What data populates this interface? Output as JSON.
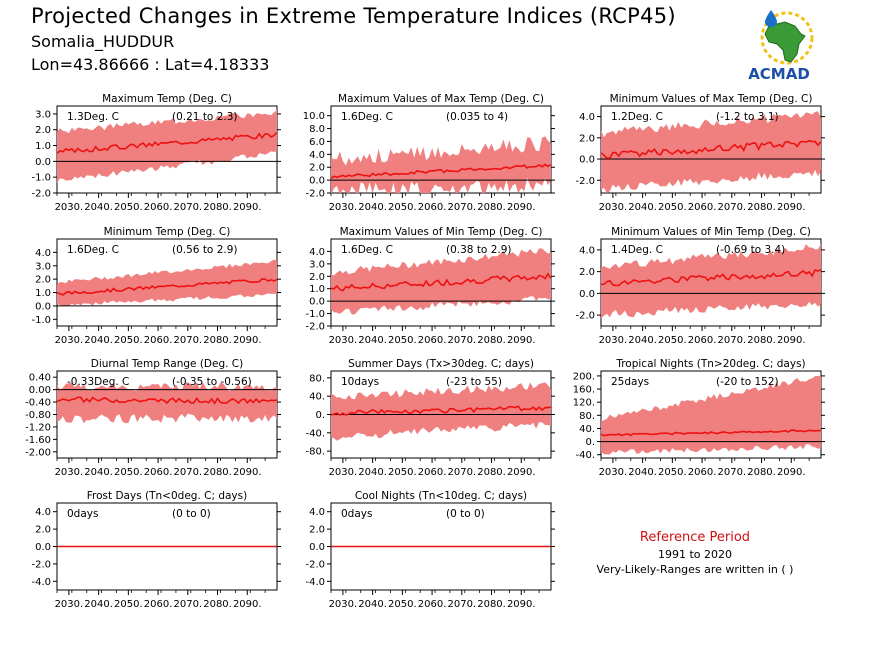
{
  "header": {
    "title": "Projected Changes in Extreme Temperature Indices (RCP45)",
    "subtitle": "Somalia_HUDDUR",
    "coords": "Lon=43.86666 : Lat=4.18333"
  },
  "logo": {
    "text": "ACMAD",
    "icon": "africa-map-logo"
  },
  "reference": {
    "title": "Reference Period",
    "years": "1991 to 2020",
    "note": "Very-Likely-Ranges are written in ( )"
  },
  "colors": {
    "band": "#f08080",
    "line": "#ee1111",
    "zero": "#000000",
    "ref_title": "#d01010"
  },
  "x_ticks": [
    "2030.",
    "2040.",
    "2050.",
    "2060.",
    "2070.",
    "2080.",
    "2090."
  ],
  "chart_data": [
    {
      "type": "line",
      "title": "Maximum Temp (Deg. C)",
      "value_label": "1.3Deg. C",
      "range_label": "(0.21 to 2.3)",
      "x_start": 2026,
      "x_end": 2100,
      "ylim": [
        -2.0,
        3.5
      ],
      "yticks": [
        "-2.0",
        "-1.0",
        "0.0",
        "1.0",
        "2.0",
        "3.0"
      ],
      "series": {
        "start": 0.6,
        "end": 1.7,
        "wiggle": 0.15,
        "band_lo_start": -1.0,
        "band_lo_end": 0.7,
        "band_hi_start": 1.7,
        "band_hi_end": 2.9,
        "band_noise": 0.4
      }
    },
    {
      "type": "line",
      "title": "Maximum Values of Max Temp (Deg. C)",
      "value_label": "1.6Deg. C",
      "range_label": "(0.035 to 4)",
      "x_start": 2026,
      "x_end": 2100,
      "ylim": [
        -2.0,
        11.5
      ],
      "yticks": [
        "-2.0",
        "0.0",
        "2.0",
        "4.0",
        "6.0",
        "8.0",
        "10.0"
      ],
      "series": {
        "start": 0.5,
        "end": 2.3,
        "wiggle": 0.25,
        "band_lo_start": -0.5,
        "band_lo_end": 0.6,
        "band_hi_start": 2.0,
        "band_hi_end": 4.5,
        "band_noise": 2.5
      }
    },
    {
      "type": "line",
      "title": "Minimum Values of Max Temp (Deg. C)",
      "value_label": "1.2Deg. C",
      "range_label": "(-1.2 to 3.1)",
      "x_start": 2026,
      "x_end": 2100,
      "ylim": [
        -3.2,
        5.0
      ],
      "yticks": [
        "-2.0",
        "0.0",
        "2.0",
        "4.0"
      ],
      "series": {
        "start": 0.3,
        "end": 1.6,
        "wiggle": 0.35,
        "band_lo_start": -2.4,
        "band_lo_end": -0.8,
        "band_hi_start": 2.0,
        "band_hi_end": 3.8,
        "band_noise": 0.9
      }
    },
    {
      "type": "line",
      "title": "Minimum Temp (Deg. C)",
      "value_label": "1.6Deg. C",
      "range_label": "(0.56 to 2.9)",
      "x_start": 2026,
      "x_end": 2100,
      "ylim": [
        -1.5,
        5.0
      ],
      "yticks": [
        "-1.0",
        "0.0",
        "1.0",
        "2.0",
        "3.0",
        "4.0"
      ],
      "series": {
        "start": 0.9,
        "end": 2.0,
        "wiggle": 0.12,
        "band_lo_start": 0.2,
        "band_lo_end": 1.0,
        "band_hi_start": 1.6,
        "band_hi_end": 3.2,
        "band_noise": 0.3
      }
    },
    {
      "type": "line",
      "title": "Maximum Values of Min Temp (Deg. C)",
      "value_label": "1.6Deg. C",
      "range_label": "(0.38 to 2.9)",
      "x_start": 2026,
      "x_end": 2100,
      "ylim": [
        -2.0,
        5.0
      ],
      "yticks": [
        "-2.0",
        "-1.0",
        "0.0",
        "1.0",
        "2.0",
        "3.0",
        "4.0"
      ],
      "series": {
        "start": 1.0,
        "end": 2.0,
        "wiggle": 0.25,
        "band_lo_start": -0.6,
        "band_lo_end": 0.5,
        "band_hi_start": 2.0,
        "band_hi_end": 3.8,
        "band_noise": 0.6
      }
    },
    {
      "type": "line",
      "title": "Minimum Values of Min Temp (Deg. C)",
      "value_label": "1.4Deg. C",
      "range_label": "(-0.69 to 3.4)",
      "x_start": 2026,
      "x_end": 2100,
      "ylim": [
        -3.0,
        5.0
      ],
      "yticks": [
        "-2.0",
        "0.0",
        "2.0",
        "4.0"
      ],
      "series": {
        "start": 0.9,
        "end": 1.9,
        "wiggle": 0.3,
        "band_lo_start": -1.6,
        "band_lo_end": -0.5,
        "band_hi_start": 2.0,
        "band_hi_end": 3.9,
        "band_noise": 0.8
      }
    },
    {
      "type": "line",
      "title": "Diurnal Temp Range (Deg. C)",
      "value_label": "-0.33Deg. C",
      "range_label": "(-0.35 to -0.56)",
      "x_start": 2026,
      "x_end": 2100,
      "ylim": [
        -2.2,
        0.6
      ],
      "yticks": [
        "-2.00",
        "-1.60",
        "-1.20",
        "-0.80",
        "-0.40",
        "0.00",
        "0.40"
      ],
      "series": {
        "start": -0.32,
        "end": -0.38,
        "wiggle": 0.08,
        "band_lo_start": -0.8,
        "band_lo_end": -0.75,
        "band_hi_start": -0.05,
        "band_hi_end": -0.05,
        "band_noise": 0.3
      }
    },
    {
      "type": "line",
      "title": "Summer Days (Tx>30deg. C; days)",
      "value_label": "10days",
      "range_label": "(-23 to 55)",
      "x_start": 2026,
      "x_end": 2100,
      "ylim": [
        -95,
        95
      ],
      "yticks": [
        "-80.",
        "-40.",
        "0.",
        "40.",
        "80."
      ],
      "series": {
        "start": 3,
        "end": 15,
        "wiggle": 5,
        "band_lo_start": -40,
        "band_lo_end": -12,
        "band_hi_start": 30,
        "band_hi_end": 55,
        "band_noise": 18
      }
    },
    {
      "type": "line",
      "title": "Tropical Nights (Tn>20deg. C; days)",
      "value_label": "25days",
      "range_label": "(-20 to 152)",
      "x_start": 2026,
      "x_end": 2100,
      "ylim": [
        -50,
        215
      ],
      "yticks": [
        "-40.",
        "0.",
        "40.",
        "80.",
        "120.",
        "160.",
        "200."
      ],
      "series": {
        "start": 20,
        "end": 34,
        "wiggle": 3,
        "band_lo_start": -25,
        "band_lo_end": -5,
        "band_hi_start": 60,
        "band_hi_end": 190,
        "band_noise": 18
      }
    },
    {
      "type": "line",
      "title": "Frost Days (Tn<0deg. C; days)",
      "value_label": "0days",
      "range_label": "(0 to 0)",
      "x_start": 2026,
      "x_end": 2100,
      "ylim": [
        -5,
        5
      ],
      "yticks": [
        "-4.0",
        "-2.0",
        "0.0",
        "2.0",
        "4.0"
      ],
      "series": {
        "start": 0,
        "end": 0,
        "wiggle": 0,
        "band_lo_start": 0,
        "band_lo_end": 0,
        "band_hi_start": 0,
        "band_hi_end": 0,
        "band_noise": 0
      }
    },
    {
      "type": "line",
      "title": "Cool Nights (Tn<10deg. C; days)",
      "value_label": "0days",
      "range_label": "(0 to 0)",
      "x_start": 2026,
      "x_end": 2100,
      "ylim": [
        -5,
        5
      ],
      "yticks": [
        "-4.0",
        "-2.0",
        "0.0",
        "2.0",
        "4.0"
      ],
      "series": {
        "start": 0,
        "end": 0,
        "wiggle": 0,
        "band_lo_start": 0,
        "band_lo_end": 0,
        "band_hi_start": 0,
        "band_hi_end": 0,
        "band_noise": 0
      }
    }
  ]
}
